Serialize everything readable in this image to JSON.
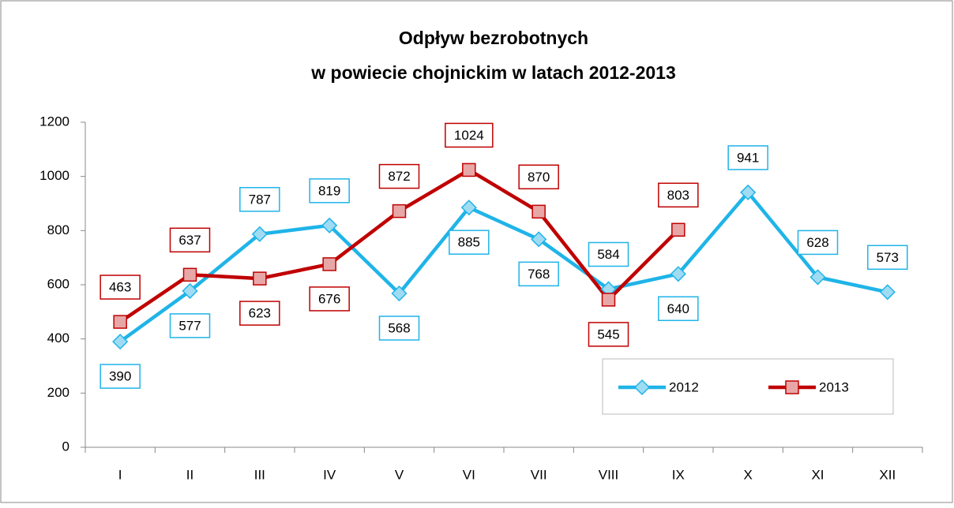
{
  "chart_data": {
    "type": "line",
    "title": [
      "Odpływ bezrobotnych",
      "w powiecie chojnickim w latach 2012-2013"
    ],
    "categories": [
      "I",
      "II",
      "III",
      "IV",
      "V",
      "VI",
      "VII",
      "VIII",
      "IX",
      "X",
      "XI",
      "XII"
    ],
    "series": [
      {
        "name": "2012",
        "color": "#1fb4e8",
        "values": [
          390,
          577,
          787,
          819,
          568,
          885,
          768,
          584,
          640,
          941,
          628,
          573
        ]
      },
      {
        "name": "2013",
        "color": "#c00000",
        "values": [
          463,
          637,
          623,
          676,
          872,
          1024,
          870,
          545,
          803,
          null,
          null,
          null
        ]
      }
    ],
    "ylim": [
      0,
      1200
    ],
    "yticks": [
      0,
      200,
      400,
      600,
      800,
      1000,
      1200
    ],
    "grid": false,
    "legend": "bottom-right"
  }
}
